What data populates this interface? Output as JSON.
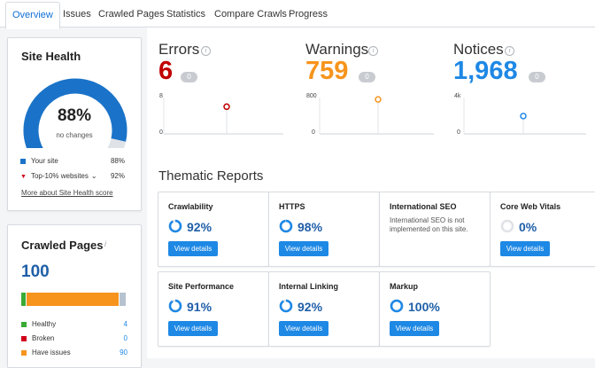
{
  "tabs": [
    "Overview",
    "Issues",
    "Crawled Pages",
    "Statistics",
    "Compare Crawls",
    "Progress"
  ],
  "site_health": {
    "title": "Site Health",
    "percent": "88%",
    "percent_value": 88,
    "subtitle": "no changes",
    "legend": [
      {
        "label": "Your site",
        "value": "88%"
      },
      {
        "label": "Top-10% websites",
        "value": "92%"
      }
    ],
    "link": "More about Site Health score"
  },
  "crawled_pages": {
    "title": "Crawled Pages",
    "info": "i",
    "total": "100",
    "bar_fractions": {
      "healthy": 0.04,
      "broken": 0.0,
      "issues": 0.9,
      "redirects": 0.06
    },
    "rows": [
      {
        "label": "Healthy",
        "value": "4",
        "color": "#3aaa35"
      },
      {
        "label": "Broken",
        "value": "0",
        "color": "#d0021b"
      },
      {
        "label": "Have issues",
        "value": "90",
        "color": "#f7941d"
      }
    ]
  },
  "metrics": [
    {
      "label": "Errors",
      "value": "6",
      "badge": "0",
      "color": "#c00000",
      "y_top": "8",
      "y_bottom": "0",
      "point_fraction": 0.75
    },
    {
      "label": "Warnings",
      "value": "759",
      "badge": "0",
      "color": "#f7941d",
      "y_top": "800",
      "y_bottom": "0",
      "point_fraction": 0.95
    },
    {
      "label": "Notices",
      "value": "1,968",
      "badge": "0",
      "color": "#1e88e5",
      "y_top": "4k",
      "y_bottom": "0",
      "point_fraction": 0.49
    }
  ],
  "thematic": {
    "title": "Thematic Reports",
    "button_label": "View details",
    "cards": [
      {
        "title": "Crawlability",
        "percent": "92%",
        "value": 92
      },
      {
        "title": "HTTPS",
        "percent": "98%",
        "value": 98
      },
      {
        "title": "International SEO",
        "note": "International SEO is not implemented on this site."
      },
      {
        "title": "Core Web Vitals",
        "percent": "0%",
        "value": 0
      },
      {
        "title": "Site Performance",
        "percent": "91%",
        "value": 91
      },
      {
        "title": "Internal Linking",
        "percent": "92%",
        "value": 92
      },
      {
        "title": "Markup",
        "percent": "100%",
        "value": 100
      }
    ]
  },
  "colors": {
    "accent": "#1e88e5",
    "gauge": "#1a73c8",
    "gauge_track": "#dfe3e7",
    "error": "#c00000",
    "warning": "#f7941d"
  }
}
